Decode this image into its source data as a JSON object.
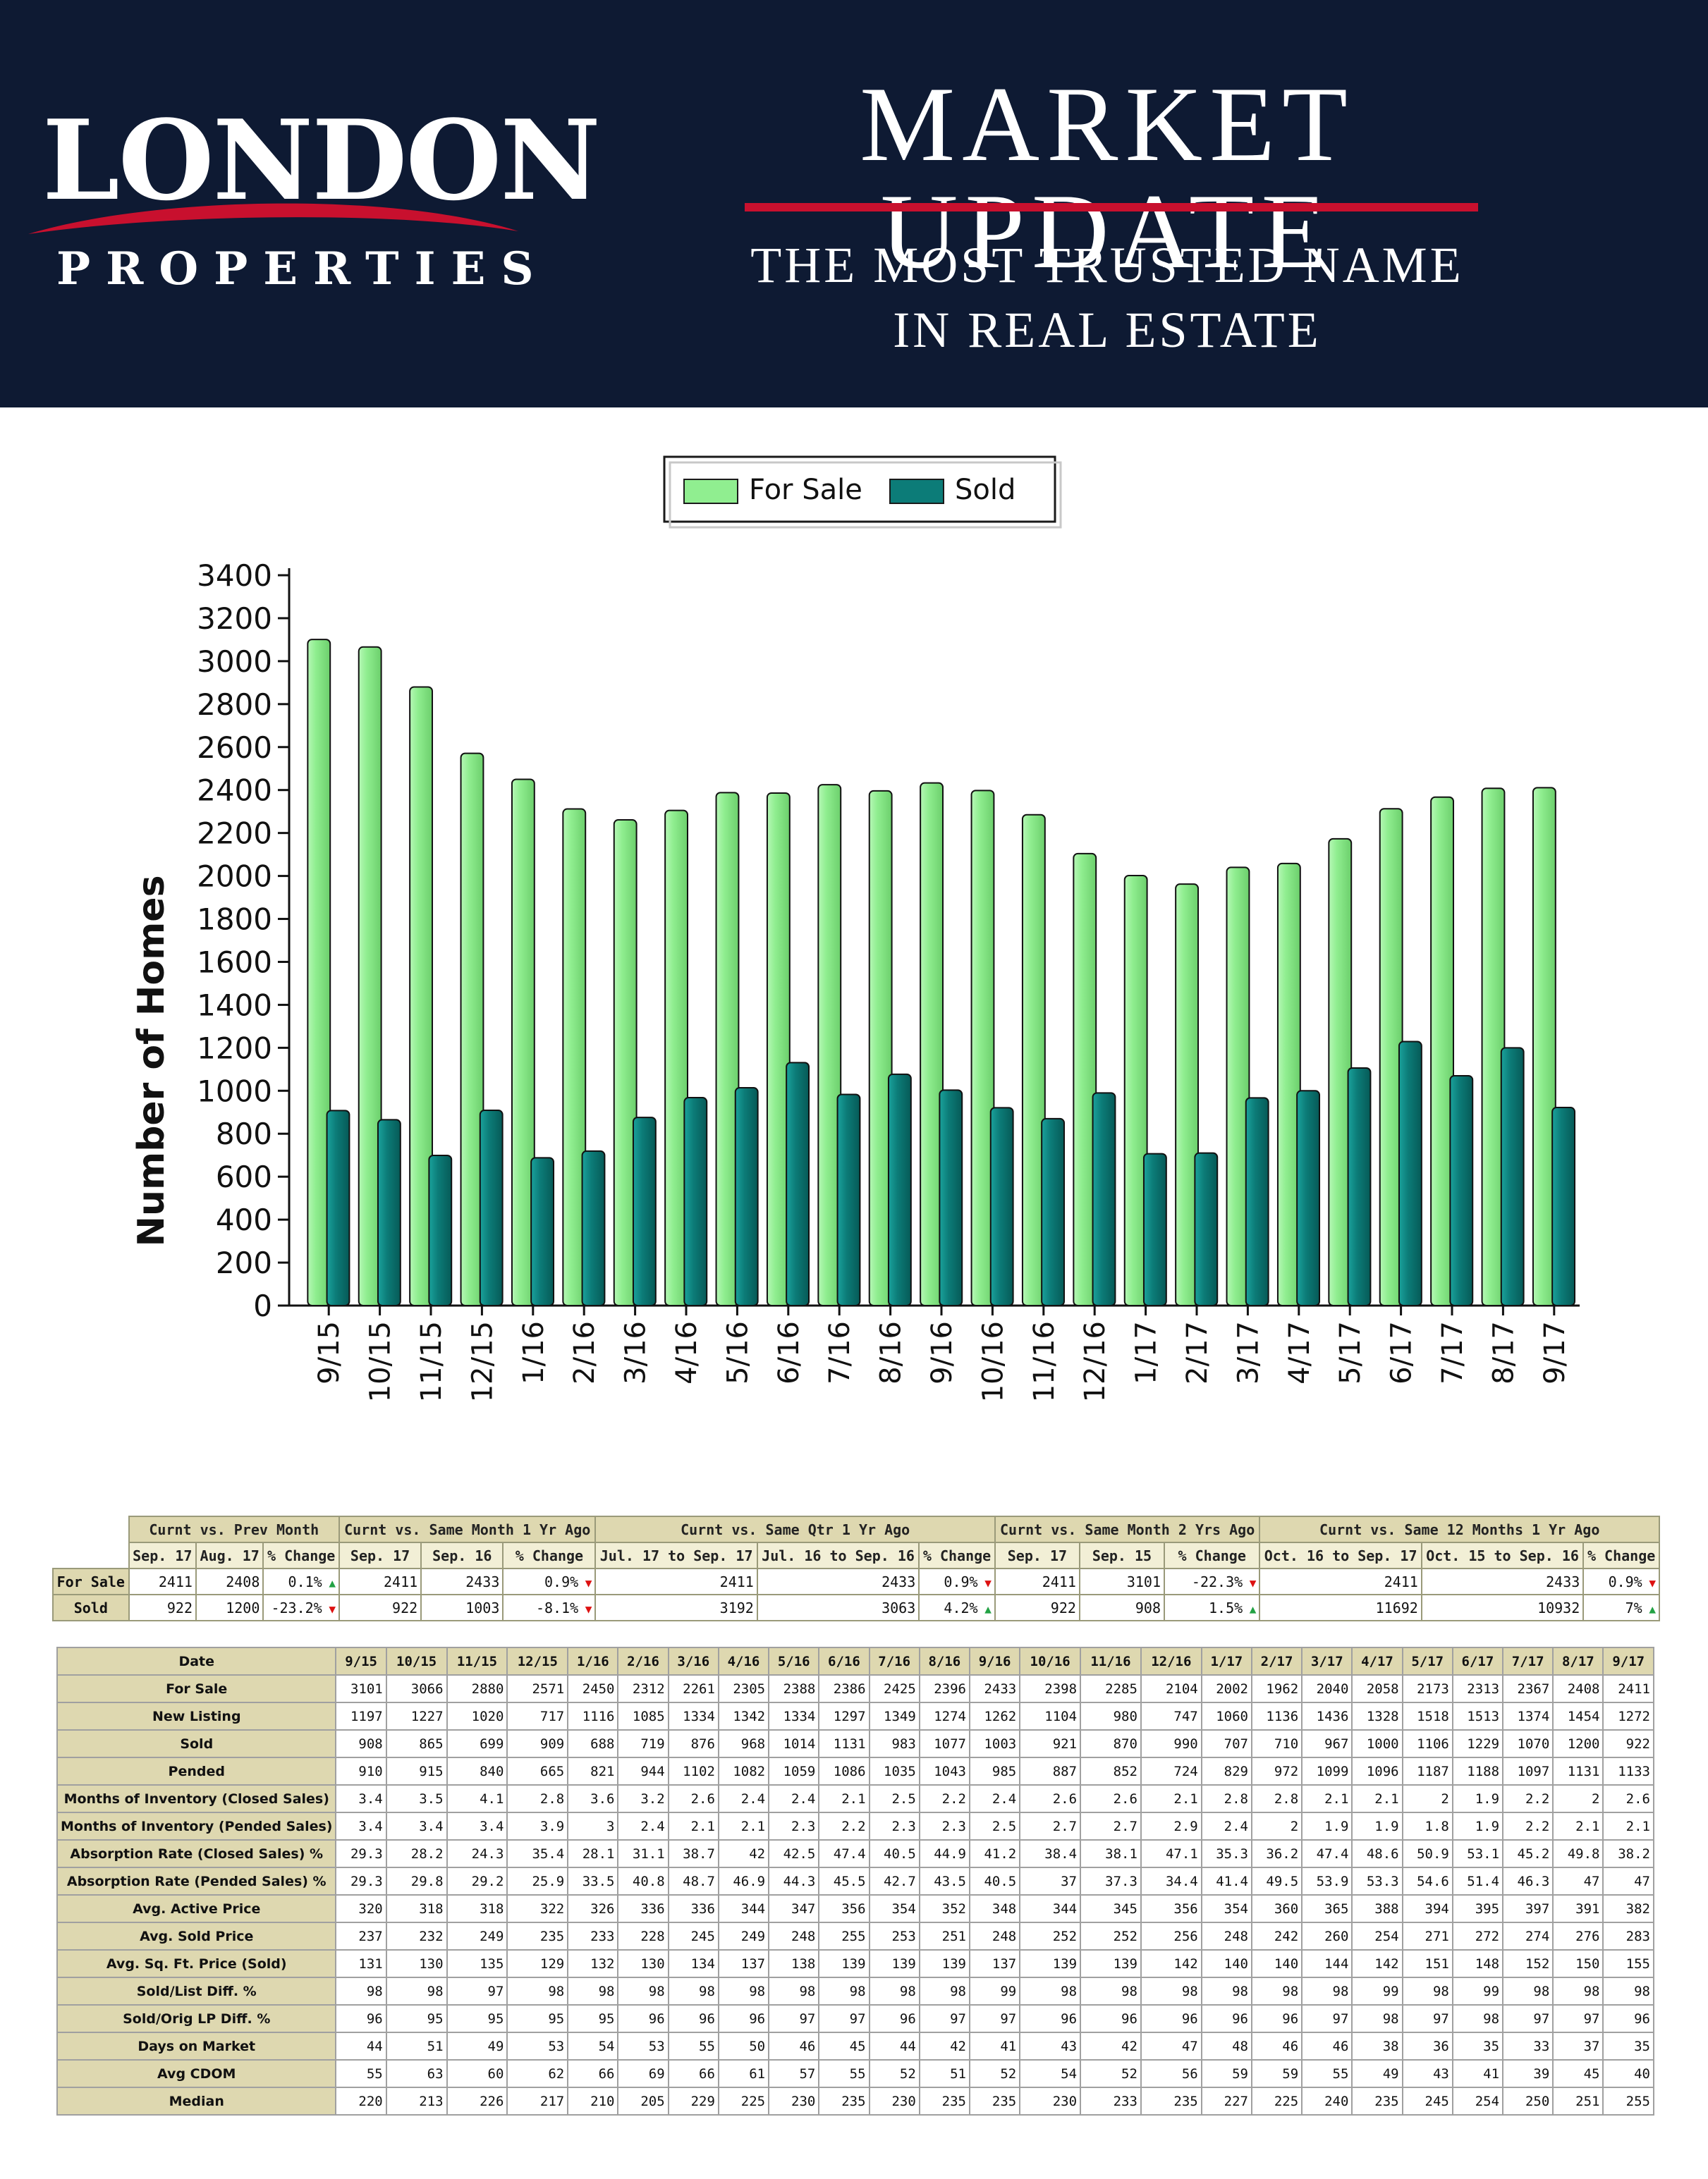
{
  "header": {
    "logo_word": "LONDON",
    "logo_sub": "PROPERTIES",
    "title": "MARKET UPDATE",
    "tagline_1": "THE MOST TRUSTED NAME",
    "tagline_2": "IN REAL ESTATE",
    "background_color": "#0e1a33",
    "accent_color": "#c8102e"
  },
  "chart_data": {
    "type": "bar",
    "title": "",
    "xlabel": "",
    "ylabel": "Number of Homes",
    "ylim": [
      0,
      3400
    ],
    "yticks": [
      0,
      200,
      400,
      600,
      800,
      1000,
      1200,
      1400,
      1600,
      1800,
      2000,
      2200,
      2400,
      2600,
      2800,
      3000,
      3200,
      3400
    ],
    "legend_position": "top",
    "categories": [
      "9/15",
      "10/15",
      "11/15",
      "12/15",
      "1/16",
      "2/16",
      "3/16",
      "4/16",
      "5/16",
      "6/16",
      "7/16",
      "8/16",
      "9/16",
      "10/16",
      "11/16",
      "12/16",
      "1/17",
      "2/17",
      "3/17",
      "4/17",
      "5/17",
      "6/17",
      "7/17",
      "8/17",
      "9/17"
    ],
    "series": [
      {
        "name": "For Sale",
        "color": "#90ee90",
        "values": [
          3101,
          3066,
          2880,
          2571,
          2450,
          2312,
          2261,
          2305,
          2388,
          2386,
          2425,
          2396,
          2433,
          2398,
          2285,
          2104,
          2002,
          1962,
          2040,
          2058,
          2173,
          2313,
          2367,
          2408,
          2411
        ]
      },
      {
        "name": "Sold",
        "color": "#0c7c78",
        "values": [
          908,
          865,
          699,
          909,
          688,
          719,
          876,
          968,
          1014,
          1131,
          983,
          1077,
          1003,
          921,
          870,
          990,
          707,
          710,
          967,
          1000,
          1106,
          1229,
          1070,
          1200,
          922
        ]
      }
    ]
  },
  "summary": {
    "groups": [
      "Curnt vs. Prev Month",
      "Curnt vs. Same Month 1 Yr Ago",
      "Curnt vs. Same Qtr 1 Yr Ago",
      "Curnt vs. Same Month 2 Yrs Ago",
      "Curnt vs. Same 12 Months 1 Yr Ago"
    ],
    "subheaders": [
      "Sep. 17",
      "Aug. 17",
      "% Change",
      "Sep. 17",
      "Sep. 16",
      "% Change",
      "Jul. 17 to Sep. 17",
      "Jul. 16 to Sep. 16",
      "% Change",
      "Sep. 17",
      "Sep. 15",
      "% Change",
      "Oct. 16 to Sep. 17",
      "Oct. 15 to Sep. 16",
      "% Change"
    ],
    "rows": [
      {
        "label": "For Sale",
        "cells": [
          {
            "v": "2411"
          },
          {
            "v": "2408"
          },
          {
            "v": "0.1%",
            "dir": "up"
          },
          {
            "v": "2411"
          },
          {
            "v": "2433"
          },
          {
            "v": "0.9%",
            "dir": "down"
          },
          {
            "v": "2411"
          },
          {
            "v": "2433"
          },
          {
            "v": "0.9%",
            "dir": "down"
          },
          {
            "v": "2411"
          },
          {
            "v": "3101"
          },
          {
            "v": "-22.3%",
            "dir": "down"
          },
          {
            "v": "2411"
          },
          {
            "v": "2433"
          },
          {
            "v": "0.9%",
            "dir": "down"
          }
        ]
      },
      {
        "label": "Sold",
        "cells": [
          {
            "v": "922"
          },
          {
            "v": "1200"
          },
          {
            "v": "-23.2%",
            "dir": "down"
          },
          {
            "v": "922"
          },
          {
            "v": "1003"
          },
          {
            "v": "-8.1%",
            "dir": "down"
          },
          {
            "v": "3192"
          },
          {
            "v": "3063"
          },
          {
            "v": "4.2%",
            "dir": "up"
          },
          {
            "v": "922"
          },
          {
            "v": "908"
          },
          {
            "v": "1.5%",
            "dir": "up"
          },
          {
            "v": "11692"
          },
          {
            "v": "10932"
          },
          {
            "v": "7%",
            "dir": "up"
          }
        ]
      }
    ]
  },
  "detail": {
    "header_label": "Date",
    "dates": [
      "9/15",
      "10/15",
      "11/15",
      "12/15",
      "1/16",
      "2/16",
      "3/16",
      "4/16",
      "5/16",
      "6/16",
      "7/16",
      "8/16",
      "9/16",
      "10/16",
      "11/16",
      "12/16",
      "1/17",
      "2/17",
      "3/17",
      "4/17",
      "5/17",
      "6/17",
      "7/17",
      "8/17",
      "9/17"
    ],
    "rows": [
      {
        "label": "For Sale",
        "values": [
          "3101",
          "3066",
          "2880",
          "2571",
          "2450",
          "2312",
          "2261",
          "2305",
          "2388",
          "2386",
          "2425",
          "2396",
          "2433",
          "2398",
          "2285",
          "2104",
          "2002",
          "1962",
          "2040",
          "2058",
          "2173",
          "2313",
          "2367",
          "2408",
          "2411"
        ]
      },
      {
        "label": "New Listing",
        "values": [
          "1197",
          "1227",
          "1020",
          "717",
          "1116",
          "1085",
          "1334",
          "1342",
          "1334",
          "1297",
          "1349",
          "1274",
          "1262",
          "1104",
          "980",
          "747",
          "1060",
          "1136",
          "1436",
          "1328",
          "1518",
          "1513",
          "1374",
          "1454",
          "1272"
        ]
      },
      {
        "label": "Sold",
        "values": [
          "908",
          "865",
          "699",
          "909",
          "688",
          "719",
          "876",
          "968",
          "1014",
          "1131",
          "983",
          "1077",
          "1003",
          "921",
          "870",
          "990",
          "707",
          "710",
          "967",
          "1000",
          "1106",
          "1229",
          "1070",
          "1200",
          "922"
        ]
      },
      {
        "label": "Pended",
        "values": [
          "910",
          "915",
          "840",
          "665",
          "821",
          "944",
          "1102",
          "1082",
          "1059",
          "1086",
          "1035",
          "1043",
          "985",
          "887",
          "852",
          "724",
          "829",
          "972",
          "1099",
          "1096",
          "1187",
          "1188",
          "1097",
          "1131",
          "1133"
        ]
      },
      {
        "label": "Months of Inventory (Closed Sales)",
        "values": [
          "3.4",
          "3.5",
          "4.1",
          "2.8",
          "3.6",
          "3.2",
          "2.6",
          "2.4",
          "2.4",
          "2.1",
          "2.5",
          "2.2",
          "2.4",
          "2.6",
          "2.6",
          "2.1",
          "2.8",
          "2.8",
          "2.1",
          "2.1",
          "2",
          "1.9",
          "2.2",
          "2",
          "2.6"
        ]
      },
      {
        "label": "Months of Inventory (Pended Sales)",
        "values": [
          "3.4",
          "3.4",
          "3.4",
          "3.9",
          "3",
          "2.4",
          "2.1",
          "2.1",
          "2.3",
          "2.2",
          "2.3",
          "2.3",
          "2.5",
          "2.7",
          "2.7",
          "2.9",
          "2.4",
          "2",
          "1.9",
          "1.9",
          "1.8",
          "1.9",
          "2.2",
          "2.1",
          "2.1"
        ]
      },
      {
        "label": "Absorption Rate (Closed Sales) %",
        "values": [
          "29.3",
          "28.2",
          "24.3",
          "35.4",
          "28.1",
          "31.1",
          "38.7",
          "42",
          "42.5",
          "47.4",
          "40.5",
          "44.9",
          "41.2",
          "38.4",
          "38.1",
          "47.1",
          "35.3",
          "36.2",
          "47.4",
          "48.6",
          "50.9",
          "53.1",
          "45.2",
          "49.8",
          "38.2"
        ]
      },
      {
        "label": "Absorption Rate (Pended Sales) %",
        "values": [
          "29.3",
          "29.8",
          "29.2",
          "25.9",
          "33.5",
          "40.8",
          "48.7",
          "46.9",
          "44.3",
          "45.5",
          "42.7",
          "43.5",
          "40.5",
          "37",
          "37.3",
          "34.4",
          "41.4",
          "49.5",
          "53.9",
          "53.3",
          "54.6",
          "51.4",
          "46.3",
          "47",
          "47"
        ]
      },
      {
        "label": "Avg. Active Price",
        "values": [
          "320",
          "318",
          "318",
          "322",
          "326",
          "336",
          "336",
          "344",
          "347",
          "356",
          "354",
          "352",
          "348",
          "344",
          "345",
          "356",
          "354",
          "360",
          "365",
          "388",
          "394",
          "395",
          "397",
          "391",
          "382"
        ]
      },
      {
        "label": "Avg. Sold Price",
        "values": [
          "237",
          "232",
          "249",
          "235",
          "233",
          "228",
          "245",
          "249",
          "248",
          "255",
          "253",
          "251",
          "248",
          "252",
          "252",
          "256",
          "248",
          "242",
          "260",
          "254",
          "271",
          "272",
          "274",
          "276",
          "283"
        ]
      },
      {
        "label": "Avg. Sq. Ft. Price (Sold)",
        "values": [
          "131",
          "130",
          "135",
          "129",
          "132",
          "130",
          "134",
          "137",
          "138",
          "139",
          "139",
          "139",
          "137",
          "139",
          "139",
          "142",
          "140",
          "140",
          "144",
          "142",
          "151",
          "148",
          "152",
          "150",
          "155"
        ]
      },
      {
        "label": "Sold/List Diff. %",
        "values": [
          "98",
          "98",
          "97",
          "98",
          "98",
          "98",
          "98",
          "98",
          "98",
          "98",
          "98",
          "98",
          "99",
          "98",
          "98",
          "98",
          "98",
          "98",
          "98",
          "99",
          "98",
          "99",
          "98",
          "98",
          "98"
        ]
      },
      {
        "label": "Sold/Orig LP Diff. %",
        "values": [
          "96",
          "95",
          "95",
          "95",
          "95",
          "96",
          "96",
          "96",
          "97",
          "97",
          "96",
          "97",
          "97",
          "96",
          "96",
          "96",
          "96",
          "96",
          "97",
          "98",
          "97",
          "98",
          "97",
          "97",
          "96"
        ]
      },
      {
        "label": "Days on Market",
        "values": [
          "44",
          "51",
          "49",
          "53",
          "54",
          "53",
          "55",
          "50",
          "46",
          "45",
          "44",
          "42",
          "41",
          "43",
          "42",
          "47",
          "48",
          "46",
          "46",
          "38",
          "36",
          "35",
          "33",
          "37",
          "35"
        ]
      },
      {
        "label": "Avg CDOM",
        "values": [
          "55",
          "63",
          "60",
          "62",
          "66",
          "69",
          "66",
          "61",
          "57",
          "55",
          "52",
          "51",
          "52",
          "54",
          "52",
          "56",
          "59",
          "59",
          "55",
          "49",
          "43",
          "41",
          "39",
          "45",
          "40"
        ]
      },
      {
        "label": "Median",
        "values": [
          "220",
          "213",
          "226",
          "217",
          "210",
          "205",
          "229",
          "225",
          "230",
          "235",
          "230",
          "235",
          "235",
          "230",
          "233",
          "235",
          "227",
          "225",
          "240",
          "235",
          "245",
          "254",
          "250",
          "251",
          "255"
        ]
      }
    ]
  }
}
